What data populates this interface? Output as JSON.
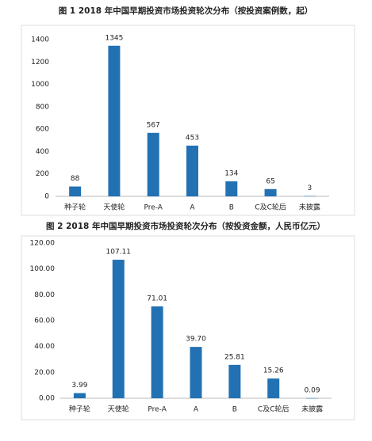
{
  "chart_data": [
    {
      "type": "bar",
      "title": "图 1 2018 年中国早期投资市场投资轮次分布（按投资案例数，起）",
      "categories": [
        "种子轮",
        "天使轮",
        "Pre-A",
        "A",
        "B",
        "C及C轮后",
        "未披露"
      ],
      "values": [
        88,
        1345,
        567,
        453,
        134,
        65,
        3
      ],
      "color": "#2271b3",
      "ylim": [
        0,
        1400
      ],
      "yticks": [
        0,
        200,
        400,
        600,
        800,
        1000,
        1200,
        1400
      ],
      "grid": false
    },
    {
      "type": "bar",
      "title": "图 2 2018 年中国早期投资市场投资轮次分布（按投资金额，人民币亿元）",
      "categories": [
        "种子轮",
        "天使轮",
        "Pre-A",
        "A",
        "B",
        "C及C轮后",
        "未披露"
      ],
      "values": [
        3.99,
        107.11,
        71.01,
        39.7,
        25.81,
        15.26,
        0.09
      ],
      "value_labels": [
        "3.99",
        "107.11",
        "71.01",
        "39.70",
        "25.81",
        "15.26",
        "0.09"
      ],
      "color": "#2271b3",
      "ylim": [
        0,
        120
      ],
      "yticks": [
        {
          "value": 0,
          "label": "0.00"
        },
        {
          "value": 20,
          "label": "20.00"
        },
        {
          "value": 40,
          "label": "40.00"
        },
        {
          "value": 60,
          "label": "60.00"
        },
        {
          "value": 80,
          "label": "80.00"
        },
        {
          "value": 100,
          "label": "100.00"
        },
        {
          "value": 120,
          "label": "120.00"
        }
      ],
      "grid": false
    }
  ]
}
